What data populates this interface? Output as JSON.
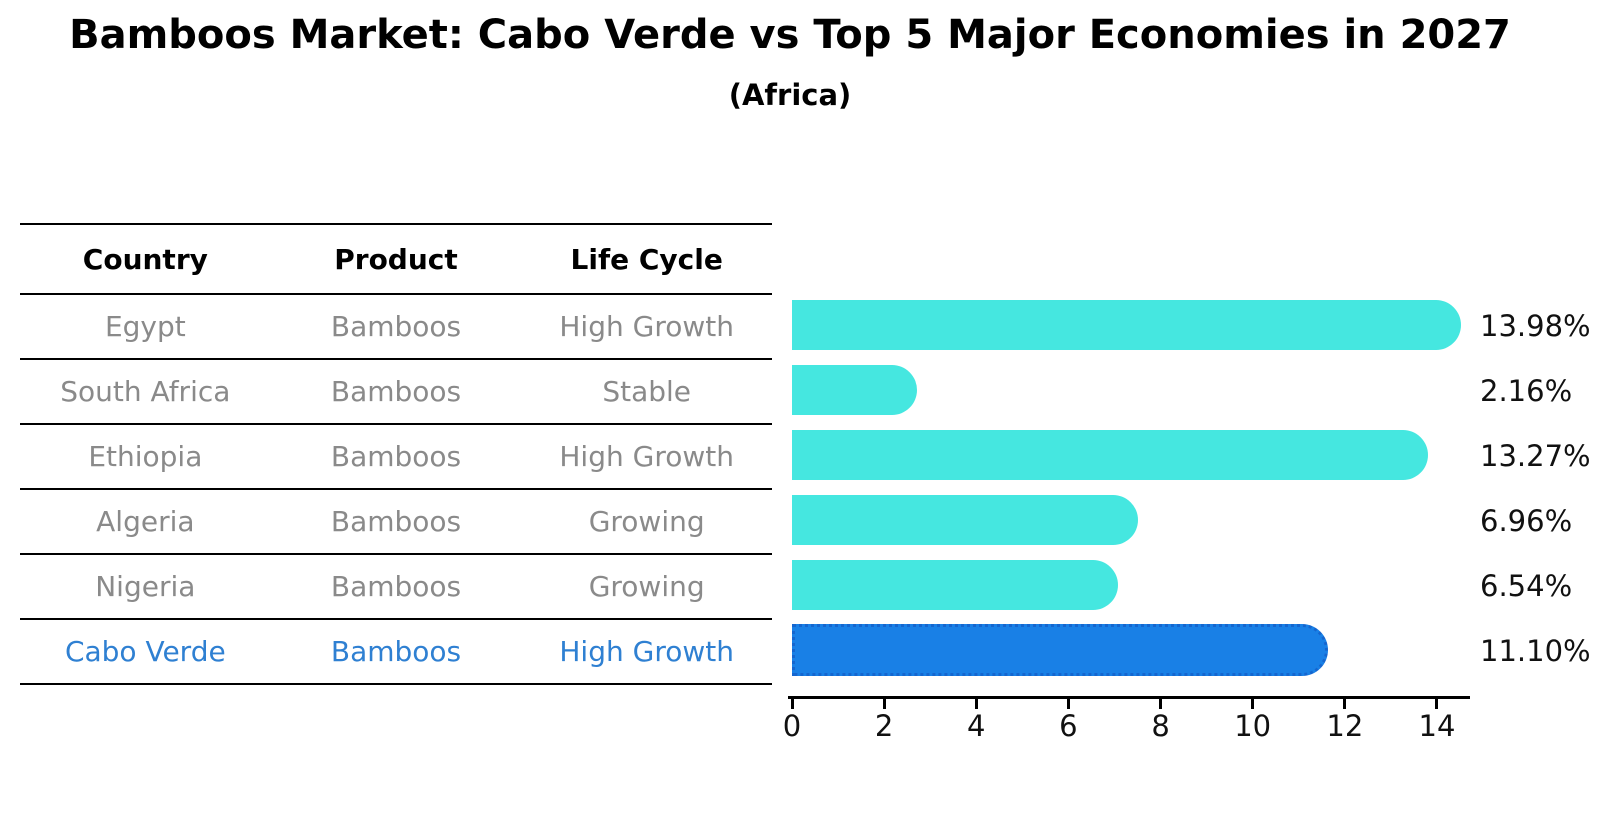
{
  "title": "Bamboos Market: Cabo Verde vs Top 5 Major Economies in 2027",
  "subtitle": "(Africa)",
  "table": {
    "columns": [
      "Country",
      "Product",
      "Life Cycle"
    ],
    "rows": [
      {
        "country": "Egypt",
        "product": "Bamboos",
        "life_cycle": "High Growth",
        "highlight": false
      },
      {
        "country": "South Africa",
        "product": "Bamboos",
        "life_cycle": "Stable",
        "highlight": false
      },
      {
        "country": "Ethiopia",
        "product": "Bamboos",
        "life_cycle": "High Growth",
        "highlight": false
      },
      {
        "country": "Algeria",
        "product": "Bamboos",
        "life_cycle": "Growing",
        "highlight": false
      },
      {
        "country": "Nigeria",
        "product": "Bamboos",
        "life_cycle": "Growing",
        "highlight": false
      },
      {
        "country": "Cabo Verde",
        "product": "Bamboos",
        "life_cycle": "High Growth",
        "highlight": true
      }
    ]
  },
  "chart_data": {
    "type": "bar",
    "orientation": "horizontal",
    "title": "Bamboos Market: Cabo Verde vs Top 5 Major Economies in 2027",
    "subtitle": "(Africa)",
    "categories": [
      "Egypt",
      "South Africa",
      "Ethiopia",
      "Algeria",
      "Nigeria",
      "Cabo Verde"
    ],
    "values": [
      13.98,
      2.16,
      13.27,
      6.96,
      6.54,
      11.1
    ],
    "value_labels": [
      "13.98%",
      "2.16%",
      "13.27%",
      "6.96%",
      "6.54%",
      "11.10%"
    ],
    "xlabel": "",
    "ylabel": "",
    "x_ticks": [
      0,
      2,
      4,
      6,
      8,
      10,
      12,
      14
    ],
    "xlim": [
      0,
      14.8
    ],
    "grid": false,
    "legend": false,
    "highlight_index": 5,
    "bar_color": "#45E7E0",
    "highlight_bar_color": "#1980E6",
    "highlight_border_color": "#1566cf"
  },
  "colors": {
    "row_text": "#8a8a8a",
    "highlight_text": "#2f80d2",
    "axis": "#000000",
    "label_text": "#111111"
  }
}
